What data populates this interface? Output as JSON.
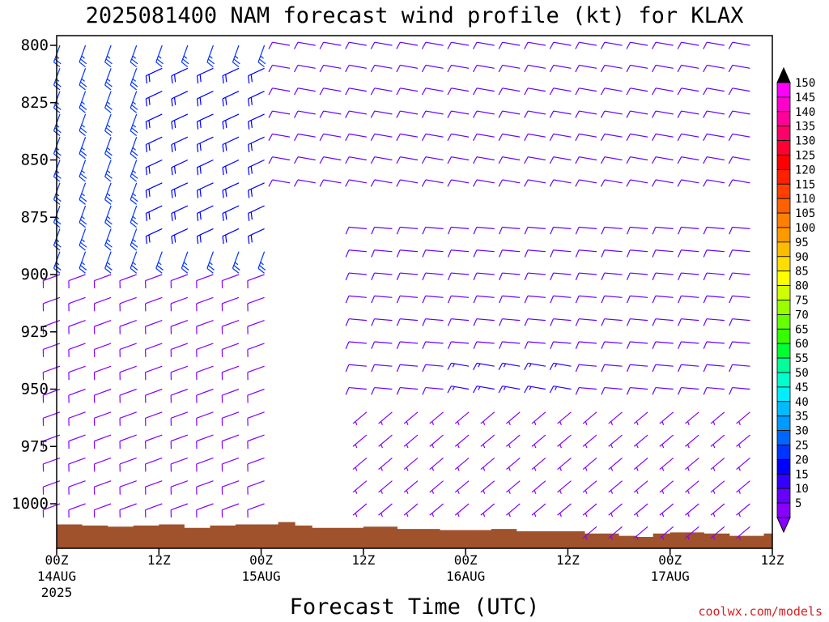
{
  "chart_data": {
    "type": "wind_barb_time_height",
    "title": "2025081400 NAM forecast wind profile (kt) for KLAX",
    "xlabel": "Forecast Time (UTC)",
    "ylabel": "",
    "credit": "coolwx.com/models",
    "y_axis": {
      "ticks": [
        "800",
        "825",
        "850",
        "875",
        "900",
        "925",
        "950",
        "975",
        "1000"
      ],
      "range_hpa": [
        800,
        1020
      ]
    },
    "x_axis": {
      "range_hours": [
        0,
        84
      ],
      "ticks": [
        {
          "hour": 0,
          "label": "00Z",
          "sub": "14AUG",
          "sub2": "2025"
        },
        {
          "hour": 12,
          "label": "12Z",
          "sub": "",
          "sub2": ""
        },
        {
          "hour": 24,
          "label": "00Z",
          "sub": "15AUG",
          "sub2": ""
        },
        {
          "hour": 36,
          "label": "12Z",
          "sub": "",
          "sub2": ""
        },
        {
          "hour": 48,
          "label": "00Z",
          "sub": "16AUG",
          "sub2": ""
        },
        {
          "hour": 60,
          "label": "12Z",
          "sub": "",
          "sub2": ""
        },
        {
          "hour": 72,
          "label": "00Z",
          "sub": "17AUG",
          "sub2": ""
        },
        {
          "hour": 84,
          "label": "12Z",
          "sub": "",
          "sub2": ""
        }
      ]
    },
    "colorbar": {
      "labels": [
        "150",
        "145",
        "140",
        "135",
        "130",
        "125",
        "120",
        "115",
        "110",
        "105",
        "100",
        "95",
        "90",
        "85",
        "80",
        "75",
        "70",
        "65",
        "60",
        "55",
        "50",
        "45",
        "40",
        "35",
        "30",
        "25",
        "20",
        "15",
        "10",
        "5"
      ],
      "colors": [
        "#ff00ff",
        "#ff00cc",
        "#ff0099",
        "#ff0066",
        "#ff0033",
        "#ff0000",
        "#ff2000",
        "#ff4000",
        "#ff6000",
        "#ff7f00",
        "#ff9900",
        "#ffbb00",
        "#ffdd00",
        "#ffff00",
        "#ccff00",
        "#99ff00",
        "#66ff00",
        "#33ff00",
        "#00ff33",
        "#00ff99",
        "#00ffcc",
        "#00eeff",
        "#00bbff",
        "#0099ff",
        "#0066ff",
        "#0033ff",
        "#0000ff",
        "#3300ff",
        "#6600ff",
        "#8800ff"
      ],
      "arrow_top_color": "#000000",
      "arrow_bottom_color": "#8800ff"
    },
    "terrain": {
      "color": "#a0522d",
      "surface_pressure_hpa": [
        [
          0,
          1009.0
        ],
        [
          3,
          1009.5
        ],
        [
          6,
          1010.0
        ],
        [
          9,
          1009.5
        ],
        [
          12,
          1009.0
        ],
        [
          15,
          1010.5
        ],
        [
          18,
          1009.5
        ],
        [
          21,
          1009.0
        ],
        [
          24,
          1009.0
        ],
        [
          26,
          1008.0
        ],
        [
          28,
          1009.5
        ],
        [
          30,
          1010.5
        ],
        [
          36,
          1010.0
        ],
        [
          40,
          1011.0
        ],
        [
          45,
          1011.5
        ],
        [
          51,
          1011.0
        ],
        [
          54,
          1012.0
        ],
        [
          60,
          1012.0
        ],
        [
          62,
          1013.0
        ],
        [
          65,
          1013.0
        ],
        [
          66,
          1014.0
        ],
        [
          68,
          1014.5
        ],
        [
          70,
          1013.0
        ],
        [
          72,
          1012.5
        ],
        [
          76,
          1013.0
        ],
        [
          79,
          1014.0
        ],
        [
          82,
          1014.0
        ],
        [
          83,
          1013.0
        ],
        [
          84,
          1013.0
        ]
      ]
    },
    "barbs": {
      "levels_hpa": [
        800,
        810,
        820,
        830,
        840,
        850,
        860,
        870,
        880,
        890,
        900,
        910,
        920,
        930,
        940,
        950,
        960,
        970,
        980,
        990,
        1000,
        1010
      ],
      "times_hours": [
        0,
        3,
        6,
        9,
        12,
        15,
        18,
        21,
        24,
        27,
        30,
        33,
        36,
        39,
        42,
        45,
        48,
        51,
        54,
        57,
        60,
        63,
        66,
        69,
        72,
        75,
        78,
        81,
        84
      ],
      "description": "wind speed and direction by pressure level and forecast time",
      "regimes": [
        {
          "t0": 0,
          "t1": 26,
          "p0": 800,
          "p1": 900,
          "direction_deg": 200,
          "speed_kt": 25
        },
        {
          "t0": 12,
          "t1": 26,
          "p0": 810,
          "p1": 880,
          "direction_deg": 245,
          "speed_kt": 20
        },
        {
          "t0": 0,
          "t1": 26,
          "p0": 900,
          "p1": 1010,
          "direction_deg": 250,
          "speed_kt": 8
        },
        {
          "t0": 26,
          "t1": 84,
          "p0": 800,
          "p1": 860,
          "direction_deg": 280,
          "speed_kt": 10
        },
        {
          "t0": 34,
          "t1": 84,
          "p0": 880,
          "p1": 960,
          "direction_deg": 275,
          "speed_kt": 12
        },
        {
          "t0": 48,
          "t1": 62,
          "p0": 940,
          "p1": 955,
          "direction_deg": 280,
          "speed_kt": 15
        },
        {
          "t0": 34,
          "t1": 84,
          "p0": 960,
          "p1": 1010,
          "direction_deg": 230,
          "speed_kt": 6
        }
      ]
    }
  }
}
